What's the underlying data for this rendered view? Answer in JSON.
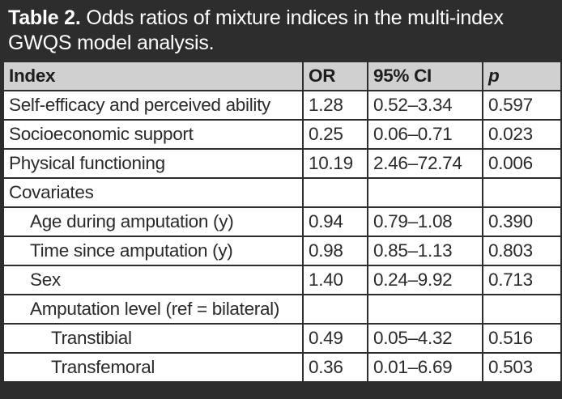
{
  "caption": {
    "label": "Table 2.",
    "text": "Odds ratios of mixture indices in the multi-index GWQS model analysis."
  },
  "table": {
    "headers": [
      "Index",
      "OR",
      "95% CI",
      "p"
    ],
    "rows": [
      {
        "index": "Self-efficacy and perceived ability",
        "or": "1.28",
        "ci": "0.52–3.34",
        "p": "0.597"
      },
      {
        "index": "Socioeconomic support",
        "or": "0.25",
        "ci": "0.06–0.71",
        "p": "0.023"
      },
      {
        "index": "Physical functioning",
        "or": "10.19",
        "ci": "2.46–72.74",
        "p": "0.006"
      },
      {
        "index": "Covariates",
        "or": "",
        "ci": "",
        "p": ""
      },
      {
        "index": "Age during amputation (y)",
        "or": "0.94",
        "ci": "0.79–1.08",
        "p": "0.390"
      },
      {
        "index": "Time since amputation (y)",
        "or": "0.98",
        "ci": "0.85–1.13",
        "p": "0.803"
      },
      {
        "index": "Sex",
        "or": "1.40",
        "ci": "0.24–9.92",
        "p": "0.713"
      },
      {
        "index": "Amputation level (ref = bilateral)",
        "or": "",
        "ci": "",
        "p": ""
      },
      {
        "index": "Transtibial",
        "or": "0.49",
        "ci": "0.05–4.32",
        "p": "0.516"
      },
      {
        "index": "Transfemoral",
        "or": "0.36",
        "ci": "0.01–6.69",
        "p": "0.503"
      }
    ]
  }
}
